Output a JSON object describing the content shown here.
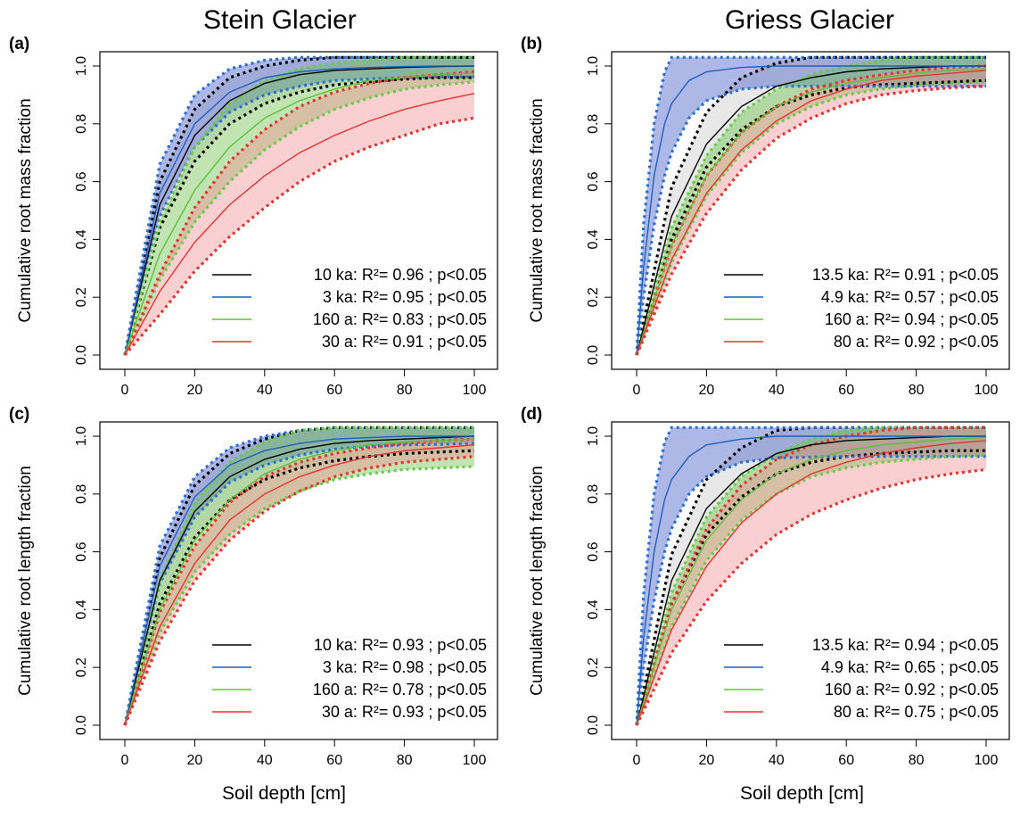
{
  "column_titles": [
    "Stein Glacier",
    "Griess Glacier"
  ],
  "shared_xlabel": "Soil depth [cm]",
  "chart_data": [
    {
      "panel": "(a)",
      "type": "line",
      "ylabel": "Cumulative root mass fraction",
      "xlabel": "Soil depth [cm]",
      "xlim": [
        0,
        100
      ],
      "ylim": [
        0,
        1
      ],
      "x_ticks": [
        0,
        20,
        40,
        60,
        80,
        100
      ],
      "y_ticks": [
        "0.0",
        "0.2",
        "0.4",
        "0.6",
        "0.8",
        "1.0"
      ],
      "legend_position": "bottom-right",
      "series": [
        {
          "name": "10 ka",
          "label": "10 ka: R²= 0.96 ; p<0.05",
          "color": "#000000",
          "band": "#c8c8c8",
          "edge": "#000000",
          "x": [
            0,
            10,
            20,
            30,
            40,
            50,
            60,
            70,
            80,
            90,
            100
          ],
          "y": [
            0.0,
            0.52,
            0.76,
            0.88,
            0.94,
            0.97,
            0.985,
            0.99,
            0.995,
            0.998,
            1.0
          ],
          "lower": [
            0.0,
            0.44,
            0.67,
            0.8,
            0.87,
            0.91,
            0.935,
            0.945,
            0.955,
            0.96,
            0.96
          ],
          "upper": [
            0.0,
            0.6,
            0.85,
            0.96,
            1.0,
            1.02,
            1.03,
            1.03,
            1.03,
            1.03,
            1.03
          ]
        },
        {
          "name": "3 ka",
          "label": "3 ka: R²= 0.95 ; p<0.05",
          "color": "#1f5fbf",
          "band": "#3f56c6",
          "edge": "#2a6fd1",
          "x": [
            0,
            10,
            20,
            30,
            40,
            50,
            60,
            70,
            80,
            90,
            100
          ],
          "y": [
            0.0,
            0.56,
            0.8,
            0.91,
            0.96,
            0.98,
            0.99,
            0.995,
            0.998,
            1.0,
            1.0
          ],
          "lower": [
            0.0,
            0.48,
            0.72,
            0.84,
            0.9,
            0.93,
            0.95,
            0.955,
            0.96,
            0.962,
            0.963
          ],
          "upper": [
            0.0,
            0.66,
            0.9,
            0.99,
            1.02,
            1.03,
            1.03,
            1.03,
            1.03,
            1.03,
            1.03
          ]
        },
        {
          "name": "160 a",
          "label": "160 a: R²= 0.83 ; p<0.05",
          "color": "#5fbf3a",
          "band": "#6ac24a",
          "edge": "#66cc44",
          "x": [
            0,
            10,
            20,
            30,
            40,
            50,
            60,
            70,
            80,
            90,
            100
          ],
          "y": [
            0.0,
            0.35,
            0.57,
            0.72,
            0.82,
            0.88,
            0.92,
            0.95,
            0.96,
            0.97,
            0.975
          ],
          "lower": [
            0.0,
            0.26,
            0.46,
            0.6,
            0.71,
            0.79,
            0.85,
            0.89,
            0.92,
            0.935,
            0.945
          ],
          "upper": [
            0.0,
            0.46,
            0.72,
            0.87,
            0.95,
            0.99,
            1.01,
            1.02,
            1.03,
            1.03,
            1.03
          ]
        },
        {
          "name": "30 a",
          "label": "30 a: R²= 0.91 ; p<0.05",
          "color": "#e8322e",
          "band": "#f28c93",
          "edge": "#e8322e",
          "x": [
            0,
            10,
            20,
            30,
            40,
            50,
            60,
            70,
            80,
            90,
            100
          ],
          "y": [
            0.0,
            0.22,
            0.39,
            0.52,
            0.62,
            0.7,
            0.76,
            0.81,
            0.85,
            0.88,
            0.905
          ],
          "lower": [
            0.0,
            0.14,
            0.29,
            0.41,
            0.51,
            0.6,
            0.67,
            0.72,
            0.76,
            0.8,
            0.82
          ],
          "upper": [
            0.0,
            0.28,
            0.51,
            0.67,
            0.78,
            0.86,
            0.91,
            0.94,
            0.96,
            0.97,
            0.98
          ]
        }
      ]
    },
    {
      "panel": "(b)",
      "type": "line",
      "ylabel": "Cumulative root mass fraction",
      "xlabel": "Soil depth [cm]",
      "xlim": [
        0,
        100
      ],
      "ylim": [
        0,
        1
      ],
      "x_ticks": [
        0,
        20,
        40,
        60,
        80,
        100
      ],
      "y_ticks": [
        "0.0",
        "0.2",
        "0.4",
        "0.6",
        "0.8",
        "1.0"
      ],
      "legend_position": "bottom-right",
      "series": [
        {
          "name": "13.5 ka",
          "label": "13.5 ka: R²= 0.91 ; p<0.05",
          "color": "#000000",
          "band": "#c8c8c8",
          "edge": "#000000",
          "x": [
            0,
            10,
            20,
            30,
            40,
            50,
            60,
            70,
            80,
            90,
            100
          ],
          "y": [
            0.0,
            0.48,
            0.73,
            0.86,
            0.93,
            0.96,
            0.98,
            0.99,
            0.995,
            1.0,
            1.0
          ],
          "lower": [
            0.0,
            0.4,
            0.65,
            0.78,
            0.86,
            0.9,
            0.925,
            0.935,
            0.94,
            0.945,
            0.95
          ],
          "upper": [
            0.0,
            0.58,
            0.84,
            0.96,
            1.01,
            1.03,
            1.03,
            1.03,
            1.03,
            1.03,
            1.03
          ]
        },
        {
          "name": "4.9 ka",
          "label": "4.9 ka: R²= 0.57 ; p<0.05",
          "color": "#1f5fbf",
          "band": "#3f56c6",
          "edge": "#2a6fd1",
          "x": [
            0,
            2,
            5,
            8,
            10,
            15,
            20,
            30,
            40,
            60,
            80,
            100
          ],
          "y": [
            0.0,
            0.3,
            0.62,
            0.8,
            0.87,
            0.95,
            0.98,
            0.995,
            1.0,
            1.0,
            1.0,
            1.0
          ],
          "lower": [
            0.0,
            0.2,
            0.45,
            0.62,
            0.7,
            0.82,
            0.88,
            0.92,
            0.93,
            0.93,
            0.93,
            0.93
          ],
          "upper": [
            0.0,
            0.45,
            0.8,
            0.98,
            1.03,
            1.03,
            1.03,
            1.03,
            1.03,
            1.03,
            1.03,
            1.03
          ]
        },
        {
          "name": "160 a",
          "label": "160 a: R²= 0.94 ; p<0.05",
          "color": "#5fbf3a",
          "band": "#6ac24a",
          "edge": "#66cc44",
          "x": [
            0,
            10,
            20,
            30,
            40,
            50,
            60,
            70,
            80,
            90,
            100
          ],
          "y": [
            0.0,
            0.38,
            0.62,
            0.77,
            0.86,
            0.91,
            0.94,
            0.96,
            0.975,
            0.985,
            0.99
          ],
          "lower": [
            0.0,
            0.32,
            0.55,
            0.7,
            0.8,
            0.86,
            0.9,
            0.92,
            0.935,
            0.94,
            0.945
          ],
          "upper": [
            0.0,
            0.44,
            0.69,
            0.84,
            0.92,
            0.97,
            1.0,
            1.02,
            1.03,
            1.03,
            1.03
          ]
        },
        {
          "name": "80 a",
          "label": "80 a: R²= 0.92 ; p<0.05",
          "color": "#e8322e",
          "band": "#f28c93",
          "edge": "#e8322e",
          "x": [
            0,
            10,
            20,
            30,
            40,
            50,
            60,
            70,
            80,
            90,
            100
          ],
          "y": [
            0.0,
            0.33,
            0.56,
            0.71,
            0.81,
            0.88,
            0.92,
            0.95,
            0.965,
            0.975,
            0.985
          ],
          "lower": [
            0.0,
            0.28,
            0.49,
            0.64,
            0.75,
            0.82,
            0.87,
            0.9,
            0.915,
            0.925,
            0.93
          ],
          "upper": [
            0.0,
            0.38,
            0.62,
            0.77,
            0.86,
            0.92,
            0.95,
            0.97,
            0.985,
            0.995,
            1.0
          ]
        }
      ]
    },
    {
      "panel": "(c)",
      "type": "line",
      "ylabel": "Cumulative root length fraction",
      "xlabel": "Soil depth [cm]",
      "xlim": [
        0,
        100
      ],
      "ylim": [
        0,
        1
      ],
      "x_ticks": [
        0,
        20,
        40,
        60,
        80,
        100
      ],
      "y_ticks": [
        "0.0",
        "0.2",
        "0.4",
        "0.6",
        "0.8",
        "1.0"
      ],
      "legend_position": "bottom-right",
      "series": [
        {
          "name": "10 ka",
          "label": "10 ka: R²= 0.93 ; p<0.05",
          "color": "#000000",
          "band": "#c8c8c8",
          "edge": "#000000",
          "x": [
            0,
            10,
            20,
            30,
            40,
            50,
            60,
            70,
            80,
            90,
            100
          ],
          "y": [
            0.0,
            0.5,
            0.74,
            0.86,
            0.92,
            0.955,
            0.975,
            0.985,
            0.99,
            0.995,
            1.0
          ],
          "lower": [
            0.0,
            0.42,
            0.65,
            0.78,
            0.85,
            0.89,
            0.915,
            0.93,
            0.94,
            0.945,
            0.95
          ],
          "upper": [
            0.0,
            0.58,
            0.83,
            0.94,
            0.99,
            1.02,
            1.03,
            1.03,
            1.03,
            1.03,
            1.03
          ]
        },
        {
          "name": "3 ka",
          "label": "3 ka: R²= 0.98 ; p<0.05",
          "color": "#1f5fbf",
          "band": "#3f56c6",
          "edge": "#2a6fd1",
          "x": [
            0,
            10,
            20,
            30,
            40,
            50,
            60,
            70,
            80,
            90,
            100
          ],
          "y": [
            0.0,
            0.55,
            0.79,
            0.9,
            0.95,
            0.975,
            0.99,
            0.995,
            1.0,
            1.0,
            1.0
          ],
          "lower": [
            0.0,
            0.49,
            0.72,
            0.84,
            0.9,
            0.935,
            0.955,
            0.965,
            0.97,
            0.972,
            0.975
          ],
          "upper": [
            0.0,
            0.62,
            0.86,
            0.96,
            1.0,
            1.02,
            1.03,
            1.03,
            1.03,
            1.03,
            1.03
          ]
        },
        {
          "name": "160 a",
          "label": "160 a: R²= 0.78 ; p<0.05",
          "color": "#5fbf3a",
          "band": "#6ac24a",
          "edge": "#66cc44",
          "x": [
            0,
            10,
            20,
            30,
            40,
            50,
            60,
            70,
            80,
            90,
            100
          ],
          "y": [
            0.0,
            0.4,
            0.64,
            0.78,
            0.87,
            0.92,
            0.95,
            0.97,
            0.98,
            0.985,
            0.99
          ],
          "lower": [
            0.0,
            0.32,
            0.53,
            0.66,
            0.75,
            0.81,
            0.85,
            0.87,
            0.885,
            0.89,
            0.895
          ],
          "upper": [
            0.0,
            0.5,
            0.77,
            0.91,
            0.98,
            1.02,
            1.03,
            1.03,
            1.03,
            1.03,
            1.03
          ]
        },
        {
          "name": "30 a",
          "label": "30 a: R²= 0.93 ; p<0.05",
          "color": "#e8322e",
          "band": "#f28c93",
          "edge": "#e8322e",
          "x": [
            0,
            10,
            20,
            30,
            40,
            50,
            60,
            70,
            80,
            90,
            100
          ],
          "y": [
            0.0,
            0.34,
            0.56,
            0.71,
            0.8,
            0.86,
            0.9,
            0.93,
            0.95,
            0.96,
            0.97
          ],
          "lower": [
            0.0,
            0.29,
            0.5,
            0.64,
            0.74,
            0.81,
            0.86,
            0.89,
            0.91,
            0.92,
            0.93
          ],
          "upper": [
            0.0,
            0.39,
            0.62,
            0.77,
            0.86,
            0.91,
            0.94,
            0.96,
            0.975,
            0.985,
            0.99
          ]
        }
      ]
    },
    {
      "panel": "(d)",
      "type": "line",
      "ylabel": "Cumulative root length fraction",
      "xlabel": "Soil depth [cm]",
      "xlim": [
        0,
        100
      ],
      "ylim": [
        0,
        1
      ],
      "x_ticks": [
        0,
        20,
        40,
        60,
        80,
        100
      ],
      "y_ticks": [
        "0.0",
        "0.2",
        "0.4",
        "0.6",
        "0.8",
        "1.0"
      ],
      "legend_position": "bottom-right",
      "series": [
        {
          "name": "13.5 ka",
          "label": "13.5 ka: R²= 0.94 ; p<0.05",
          "color": "#000000",
          "band": "#c8c8c8",
          "edge": "#000000",
          "x": [
            0,
            10,
            20,
            30,
            40,
            50,
            60,
            70,
            80,
            90,
            100
          ],
          "y": [
            0.0,
            0.5,
            0.75,
            0.87,
            0.94,
            0.97,
            0.985,
            0.99,
            0.995,
            1.0,
            1.0
          ],
          "lower": [
            0.0,
            0.42,
            0.66,
            0.79,
            0.87,
            0.91,
            0.93,
            0.94,
            0.945,
            0.95,
            0.95
          ],
          "upper": [
            0.0,
            0.59,
            0.85,
            0.96,
            1.02,
            1.03,
            1.03,
            1.03,
            1.03,
            1.03,
            1.03
          ]
        },
        {
          "name": "4.9 ka",
          "label": "4.9 ka: R²= 0.65 ; p<0.05",
          "color": "#1f5fbf",
          "band": "#3f56c6",
          "edge": "#2a6fd1",
          "x": [
            0,
            2,
            5,
            8,
            10,
            15,
            20,
            30,
            40,
            60,
            80,
            100
          ],
          "y": [
            0.0,
            0.3,
            0.6,
            0.78,
            0.85,
            0.93,
            0.97,
            0.99,
            1.0,
            1.0,
            1.0,
            1.0
          ],
          "lower": [
            0.0,
            0.2,
            0.43,
            0.6,
            0.68,
            0.8,
            0.86,
            0.91,
            0.925,
            0.93,
            0.93,
            0.93
          ],
          "upper": [
            0.0,
            0.45,
            0.8,
            0.98,
            1.03,
            1.03,
            1.03,
            1.03,
            1.03,
            1.03,
            1.03,
            1.03
          ]
        },
        {
          "name": "160 a",
          "label": "160 a: R²= 0.92 ; p<0.05",
          "color": "#5fbf3a",
          "band": "#6ac24a",
          "edge": "#66cc44",
          "x": [
            0,
            10,
            20,
            30,
            40,
            50,
            60,
            70,
            80,
            90,
            100
          ],
          "y": [
            0.0,
            0.4,
            0.64,
            0.78,
            0.87,
            0.92,
            0.95,
            0.97,
            0.98,
            0.99,
            0.995
          ],
          "lower": [
            0.0,
            0.34,
            0.57,
            0.71,
            0.8,
            0.86,
            0.89,
            0.91,
            0.92,
            0.93,
            0.935
          ],
          "upper": [
            0.0,
            0.46,
            0.72,
            0.86,
            0.94,
            0.99,
            1.02,
            1.03,
            1.03,
            1.03,
            1.03
          ]
        },
        {
          "name": "80 a",
          "label": "80 a: R²= 0.75 ; p<0.05",
          "color": "#e8322e",
          "band": "#f28c93",
          "edge": "#e8322e",
          "x": [
            0,
            10,
            20,
            30,
            40,
            50,
            60,
            70,
            80,
            90,
            100
          ],
          "y": [
            0.0,
            0.33,
            0.55,
            0.7,
            0.8,
            0.87,
            0.91,
            0.94,
            0.96,
            0.975,
            0.985
          ],
          "lower": [
            0.0,
            0.25,
            0.43,
            0.56,
            0.66,
            0.73,
            0.78,
            0.82,
            0.85,
            0.87,
            0.885
          ],
          "upper": [
            0.0,
            0.42,
            0.68,
            0.83,
            0.92,
            0.97,
            1.0,
            1.02,
            1.03,
            1.03,
            1.03
          ]
        }
      ]
    }
  ]
}
